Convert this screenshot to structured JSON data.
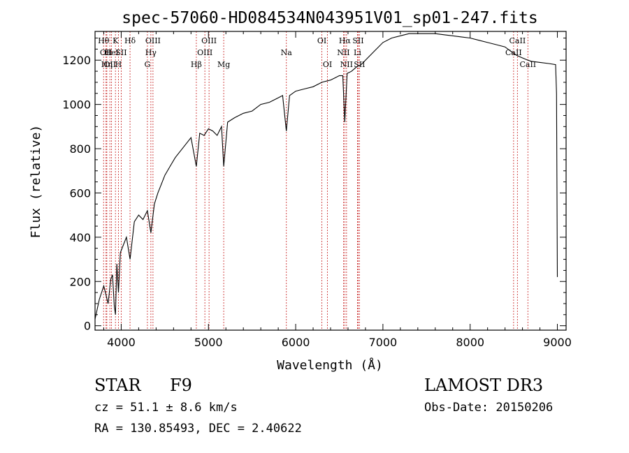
{
  "chart_data": {
    "type": "line",
    "title": "spec-57060-HD084534N043951V01_sp01-247.fits",
    "xlabel": "Wavelength (Å)",
    "ylabel": "Flux (relative)",
    "xlim": [
      3700,
      9100
    ],
    "ylim": [
      -20,
      1330
    ],
    "xticks": [
      4000,
      5000,
      6000,
      7000,
      8000,
      9000
    ],
    "yticks": [
      0,
      200,
      400,
      600,
      800,
      1000,
      1200
    ],
    "grid": false,
    "series": [
      {
        "name": "spectrum",
        "x": [
          3700,
          3750,
          3800,
          3850,
          3880,
          3900,
          3920,
          3934,
          3950,
          3968,
          3990,
          4020,
          4060,
          4101,
          4150,
          4200,
          4250,
          4300,
          4340,
          4380,
          4420,
          4460,
          4500,
          4560,
          4620,
          4680,
          4740,
          4800,
          4861,
          4900,
          4950,
          5000,
          5050,
          5100,
          5150,
          5175,
          5220,
          5300,
          5400,
          5500,
          5600,
          5700,
          5800,
          5850,
          5893,
          5930,
          6000,
          6100,
          6200,
          6300,
          6400,
          6450,
          6500,
          6540,
          6563,
          6590,
          6640,
          6700,
          6750,
          6800,
          6900,
          7000,
          7100,
          7200,
          7300,
          7400,
          7500,
          7600,
          7700,
          7800,
          7900,
          8000,
          8100,
          8200,
          8300,
          8400,
          8500,
          8542,
          8600,
          8662,
          8700,
          8800,
          8900,
          8980,
          8990,
          9000
        ],
        "y": [
          30,
          120,
          180,
          100,
          210,
          230,
          90,
          50,
          280,
          150,
          330,
          360,
          400,
          300,
          470,
          500,
          480,
          520,
          420,
          550,
          600,
          640,
          680,
          720,
          760,
          790,
          820,
          850,
          720,
          870,
          860,
          890,
          880,
          860,
          900,
          720,
          920,
          940,
          960,
          970,
          1000,
          1010,
          1030,
          1040,
          880,
          1040,
          1060,
          1070,
          1080,
          1100,
          1110,
          1120,
          1130,
          1130,
          920,
          1140,
          1150,
          1170,
          1180,
          1200,
          1240,
          1280,
          1300,
          1310,
          1320,
          1320,
          1320,
          1320,
          1315,
          1310,
          1305,
          1300,
          1290,
          1280,
          1270,
          1260,
          1230,
          1220,
          1210,
          1200,
          1195,
          1190,
          1185,
          1180,
          1050,
          220
        ]
      }
    ],
    "lines": [
      {
        "wl": 3798,
        "label": "Hθ",
        "row": 1
      },
      {
        "wl": 3826,
        "label": "OII",
        "row": 2
      },
      {
        "wl": 3835,
        "label": "Hη",
        "row": 3
      },
      {
        "wl": 3870,
        "label": "OII",
        "row": 3
      },
      {
        "wl": 3889,
        "label": "HeI",
        "row": 2
      },
      {
        "wl": 3934,
        "label": "K",
        "row": 1
      },
      {
        "wl": 3968,
        "label": "H",
        "row": 3
      },
      {
        "wl": 4000,
        "label": "SII",
        "row": 2
      },
      {
        "wl": 4101,
        "label": "Hδ",
        "row": 1
      },
      {
        "wl": 4300,
        "label": "G",
        "row": 3
      },
      {
        "wl": 4340,
        "label": "Hγ",
        "row": 2
      },
      {
        "wl": 4364,
        "label": "OIII",
        "row": 1
      },
      {
        "wl": 4861,
        "label": "Hβ",
        "row": 3
      },
      {
        "wl": 4959,
        "label": "OIII",
        "row": 2
      },
      {
        "wl": 5007,
        "label": "OIII",
        "row": 1
      },
      {
        "wl": 5175,
        "label": "Mg",
        "row": 3
      },
      {
        "wl": 5893,
        "label": "Na",
        "row": 2
      },
      {
        "wl": 6300,
        "label": "OI",
        "row": 1
      },
      {
        "wl": 6364,
        "label": "OI",
        "row": 3
      },
      {
        "wl": 6548,
        "label": "NII",
        "row": 2
      },
      {
        "wl": 6563,
        "label": "Hα",
        "row": 1
      },
      {
        "wl": 6583,
        "label": "NII",
        "row": 3
      },
      {
        "wl": 6708,
        "label": "Li",
        "row": 2
      },
      {
        "wl": 6716,
        "label": "SII",
        "row": 1
      },
      {
        "wl": 6731,
        "label": "SII",
        "row": 3
      },
      {
        "wl": 8498,
        "label": "CaII",
        "row": 2
      },
      {
        "wl": 8542,
        "label": "CaII",
        "row": 1
      },
      {
        "wl": 8662,
        "label": "CaII",
        "row": 3
      }
    ]
  },
  "info": {
    "class_label": "STAR",
    "subclass": "F9",
    "survey": "LAMOST DR3",
    "cz": "cz = 51.1 ± 8.6 km/s",
    "obs_date": "Obs-Date: 20150206",
    "coords": "RA = 130.85493, DEC =    2.40622"
  }
}
